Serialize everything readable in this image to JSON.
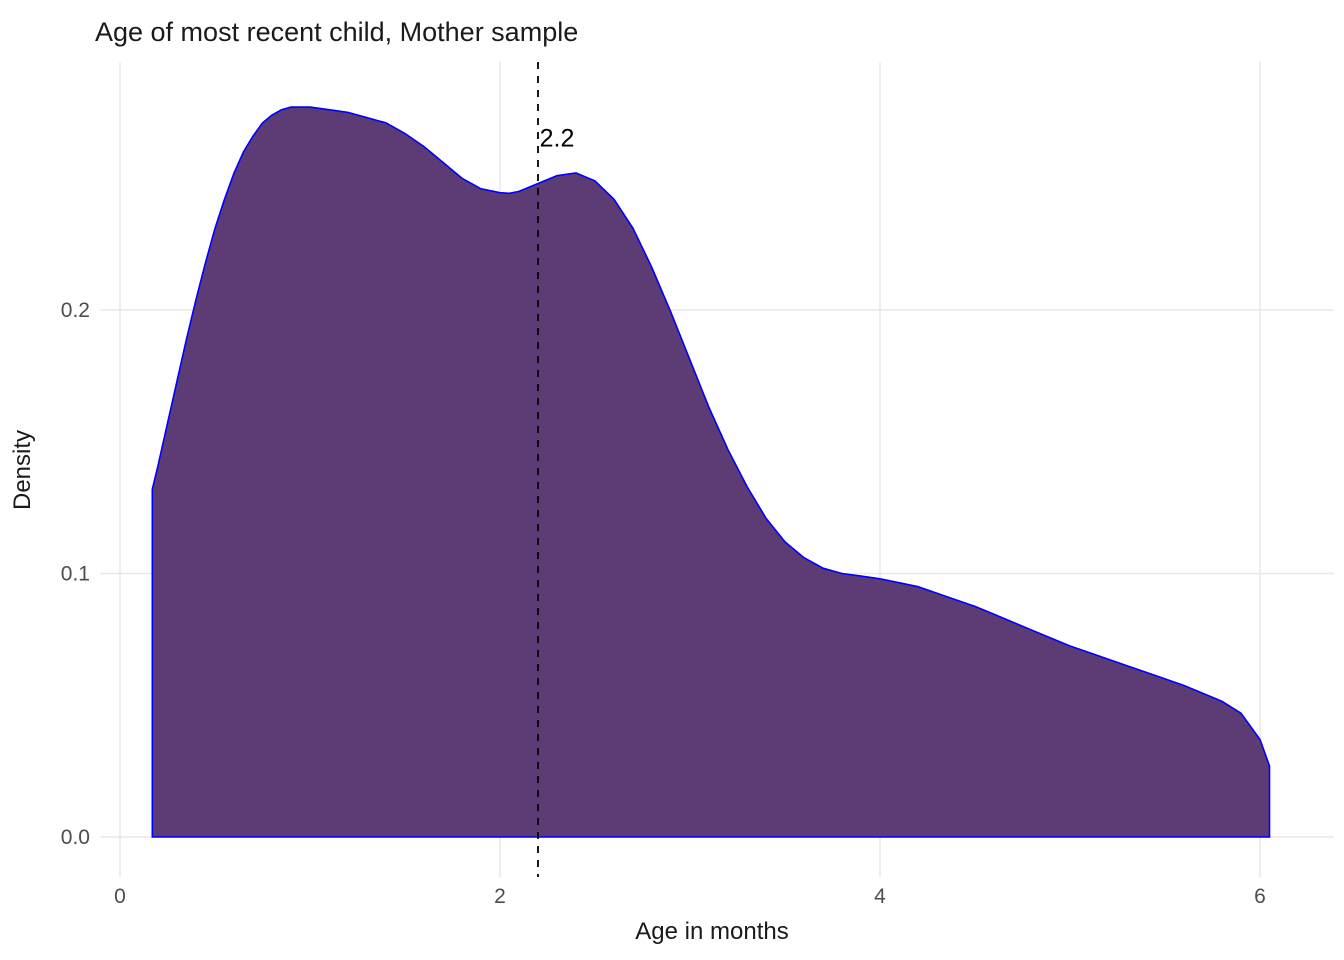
{
  "chart_data": {
    "type": "area",
    "title": "Age of most recent child, Mother sample",
    "xlabel": "Age in months",
    "ylabel": "Density",
    "xlim": [
      -0.1,
      6.4
    ],
    "ylim": [
      0,
      0.295
    ],
    "grid": "major",
    "legend": "none",
    "background": "#ffffff",
    "gridline_color": "#e8e8e8",
    "x_ticks": [
      {
        "value": 0,
        "label": "0"
      },
      {
        "value": 2,
        "label": "2"
      },
      {
        "value": 4,
        "label": "4"
      },
      {
        "value": 6,
        "label": "6"
      }
    ],
    "y_ticks": [
      {
        "value": 0.0,
        "label": "0.0"
      },
      {
        "value": 0.1,
        "label": "0.1"
      },
      {
        "value": 0.2,
        "label": "0.2"
      }
    ],
    "vline": {
      "x": 2.2,
      "label": "2.2",
      "style": "dashed",
      "color": "#000000",
      "label_x": 2.3,
      "label_y": 0.262
    },
    "series": [
      {
        "name": "density",
        "fill": "#5d3b74",
        "stroke": "#0000ff",
        "baseline": 0,
        "points": [
          [
            0.17,
            0.132
          ],
          [
            0.2,
            0.141
          ],
          [
            0.25,
            0.157
          ],
          [
            0.3,
            0.173
          ],
          [
            0.35,
            0.189
          ],
          [
            0.4,
            0.204
          ],
          [
            0.45,
            0.218
          ],
          [
            0.5,
            0.231
          ],
          [
            0.55,
            0.242
          ],
          [
            0.6,
            0.252
          ],
          [
            0.65,
            0.26
          ],
          [
            0.7,
            0.266
          ],
          [
            0.75,
            0.271
          ],
          [
            0.8,
            0.274
          ],
          [
            0.85,
            0.276
          ],
          [
            0.9,
            0.277
          ],
          [
            1.0,
            0.277
          ],
          [
            1.1,
            0.276
          ],
          [
            1.2,
            0.275
          ],
          [
            1.3,
            0.273
          ],
          [
            1.4,
            0.271
          ],
          [
            1.5,
            0.267
          ],
          [
            1.6,
            0.262
          ],
          [
            1.7,
            0.256
          ],
          [
            1.8,
            0.25
          ],
          [
            1.9,
            0.246
          ],
          [
            2.0,
            0.2445
          ],
          [
            2.05,
            0.2443
          ],
          [
            2.1,
            0.245
          ],
          [
            2.2,
            0.248
          ],
          [
            2.3,
            0.251
          ],
          [
            2.4,
            0.252
          ],
          [
            2.5,
            0.249
          ],
          [
            2.6,
            0.242
          ],
          [
            2.7,
            0.231
          ],
          [
            2.8,
            0.216
          ],
          [
            2.9,
            0.199
          ],
          [
            3.0,
            0.181
          ],
          [
            3.1,
            0.163
          ],
          [
            3.2,
            0.147
          ],
          [
            3.3,
            0.133
          ],
          [
            3.4,
            0.121
          ],
          [
            3.5,
            0.112
          ],
          [
            3.6,
            0.106
          ],
          [
            3.7,
            0.102
          ],
          [
            3.8,
            0.1
          ],
          [
            3.9,
            0.099
          ],
          [
            4.0,
            0.098
          ],
          [
            4.1,
            0.0965
          ],
          [
            4.2,
            0.095
          ],
          [
            4.3,
            0.0925
          ],
          [
            4.4,
            0.09
          ],
          [
            4.5,
            0.0875
          ],
          [
            4.6,
            0.0845
          ],
          [
            4.7,
            0.0815
          ],
          [
            4.8,
            0.0785
          ],
          [
            4.9,
            0.0755
          ],
          [
            5.0,
            0.0725
          ],
          [
            5.1,
            0.07
          ],
          [
            5.2,
            0.0675
          ],
          [
            5.3,
            0.065
          ],
          [
            5.4,
            0.0625
          ],
          [
            5.5,
            0.06
          ],
          [
            5.6,
            0.0575
          ],
          [
            5.7,
            0.0545
          ],
          [
            5.8,
            0.0515
          ],
          [
            5.9,
            0.047
          ],
          [
            6.0,
            0.037
          ],
          [
            6.05,
            0.027
          ]
        ]
      }
    ]
  }
}
